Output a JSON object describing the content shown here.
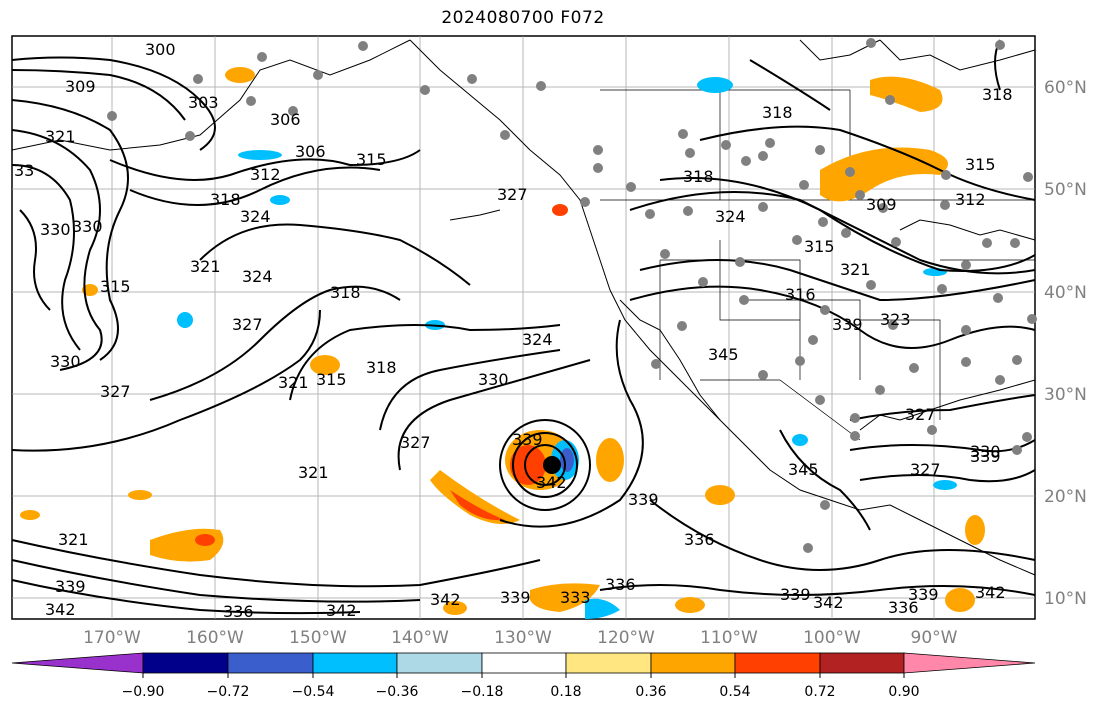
{
  "title": "2024080700 F072",
  "latitude_labels": [
    "60°N",
    "50°N",
    "40°N",
    "30°N",
    "20°N",
    "10°N"
  ],
  "longitude_labels": [
    "170°W",
    "160°W",
    "150°W",
    "140°W",
    "130°W",
    "120°W",
    "110°W",
    "100°W",
    "90°W"
  ],
  "contour_labels": [
    "300",
    "309",
    "303",
    "321",
    "33",
    "306",
    "315",
    "312",
    "318",
    "330",
    "330",
    "324",
    "315",
    "321",
    "324",
    "327",
    "318",
    "321",
    "315",
    "318",
    "330",
    "327",
    "324",
    "330",
    "327",
    "321",
    "339",
    "342",
    "339",
    "321",
    "339",
    "342",
    "336",
    "342",
    "342",
    "339",
    "333",
    "336",
    "339",
    "336",
    "339",
    "342",
    "336",
    "339",
    "342",
    "318",
    "315",
    "312",
    "309",
    "315",
    "321",
    "316",
    "339",
    "345",
    "323",
    "327",
    "330",
    "327",
    "345",
    "318",
    "318",
    "327",
    "324",
    "306"
  ],
  "colorbar": {
    "tick_labels": [
      "−0.90",
      "−0.72",
      "−0.54",
      "−0.36",
      "−0.18",
      "0.18",
      "0.36",
      "0.54",
      "0.72",
      "0.90"
    ],
    "colors": [
      "#9932cc",
      "#00008b",
      "#3a5fcd",
      "#00bfff",
      "#add8e6",
      "#ffffff",
      "#ffe680",
      "#ffa500",
      "#ff4000",
      "#b22222",
      "#ff88aa"
    ]
  },
  "storm_marker": "black dot near 23°N 126°W"
}
